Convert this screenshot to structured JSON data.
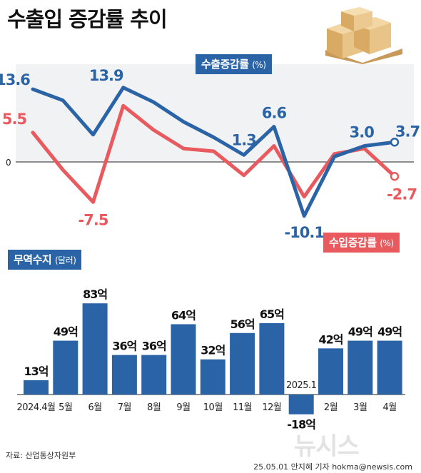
{
  "title": "수출입 증감률 추이",
  "chart_data": [
    {
      "type": "line",
      "categories": [
        "2024.4월",
        "5월",
        "6월",
        "7월",
        "8월",
        "9월",
        "10월",
        "11월",
        "12월",
        "2025.1",
        "2월",
        "3월",
        "4월"
      ],
      "series": [
        {
          "name": "수출증감률",
          "unit": "(%)",
          "color": "#2b64a6",
          "values": [
            13.6,
            11.5,
            5.1,
            13.9,
            11.2,
            7.5,
            4.6,
            1.3,
            6.6,
            -10.1,
            1.0,
            3.0,
            3.7
          ],
          "labels": [
            "13.6",
            "",
            "",
            "13.9",
            "",
            "",
            "",
            "1.3",
            "6.6",
            "-10.1",
            "",
            "3.0",
            "3.7"
          ]
        },
        {
          "name": "수입증감률",
          "unit": "(%)",
          "color": "#e95a5f",
          "values": [
            5.5,
            -1.5,
            -7.5,
            10.5,
            6.0,
            2.5,
            2.0,
            -2.5,
            3.0,
            -6.5,
            1.5,
            2.5,
            -2.7
          ],
          "labels": [
            "5.5",
            "",
            "-7.5",
            "",
            "",
            "",
            "",
            "",
            "",
            "",
            "",
            "",
            "-2.7"
          ]
        }
      ],
      "zero_label": "0",
      "ylim": [
        -12,
        16
      ]
    },
    {
      "type": "bar",
      "name": "무역수지",
      "unit": "(달러)",
      "color": "#2b64a6",
      "categories": [
        "2024.4월",
        "5월",
        "6월",
        "7월",
        "8월",
        "9월",
        "10월",
        "11월",
        "12월",
        "2025.1",
        "2월",
        "3월",
        "4월"
      ],
      "values": [
        13,
        49,
        83,
        36,
        36,
        64,
        32,
        56,
        65,
        -18,
        42,
        49,
        49
      ],
      "value_labels": [
        "13억",
        "49억",
        "83억",
        "36억",
        "36억",
        "64억",
        "32억",
        "56억",
        "65억",
        "-18억",
        "42억",
        "49억",
        "49억"
      ]
    }
  ],
  "source": "자료: 산업통상자원부",
  "credit": "25.05.01 안지혜 기자 hokma@newsis.com",
  "watermark": "뉴시스",
  "icons": {
    "top_right": "cardboard-boxes-icon"
  }
}
